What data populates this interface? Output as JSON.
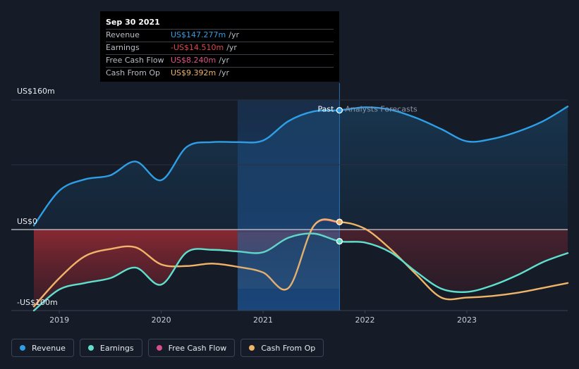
{
  "tooltip": {
    "date": "Sep 30 2021",
    "rows": [
      {
        "label": "Revenue",
        "value": "US$147.277m",
        "unit": "/yr",
        "color": "#2e9fe6"
      },
      {
        "label": "Earnings",
        "value": "-US$14.510m",
        "unit": "/yr",
        "color": "#e2454b"
      },
      {
        "label": "Free Cash Flow",
        "value": "US$8.240m",
        "unit": "/yr",
        "color": "#e0508a"
      },
      {
        "label": "Cash From Op",
        "value": "US$9.392m",
        "unit": "/yr",
        "color": "#f0b468"
      }
    ]
  },
  "labels": {
    "past": "Past",
    "forecast": "Analysts Forecasts"
  },
  "legend": [
    {
      "label": "Revenue",
      "color": "#2e9fe6"
    },
    {
      "label": "Earnings",
      "color": "#5fe0cf"
    },
    {
      "label": "Free Cash Flow",
      "color": "#d6508a"
    },
    {
      "label": "Cash From Op",
      "color": "#f0b468"
    }
  ],
  "chart_data": {
    "type": "line",
    "y_unit": "US$ m",
    "ylim": [
      -100,
      160
    ],
    "ytick_labels": [
      "US$160m",
      "US$0",
      "-US$100m"
    ],
    "yticks": [
      160,
      0,
      -100
    ],
    "xlim": [
      2018.75,
      2023.99
    ],
    "xticks": [
      2019,
      2020,
      2021,
      2022,
      2023
    ],
    "xtick_labels": [
      "2019",
      "2020",
      "2021",
      "2022",
      "2023"
    ],
    "past_end": 2021.75,
    "highlight_start": 2020.75,
    "series": [
      {
        "name": "Revenue",
        "color": "#2e9fe6",
        "x": [
          2018.75,
          2019.0,
          2019.25,
          2019.5,
          2019.75,
          2020.0,
          2020.25,
          2020.5,
          2020.75,
          2021.0,
          2021.25,
          2021.5,
          2021.75,
          2022.0,
          2022.25,
          2022.5,
          2022.75,
          2023.0,
          2023.25,
          2023.5,
          2023.75,
          2023.99
        ],
        "y": [
          5,
          48,
          62,
          67,
          84,
          61,
          102,
          108,
          108,
          110,
          134,
          146,
          147.3,
          151,
          148,
          138,
          124,
          109,
          112,
          121,
          134,
          152
        ]
      },
      {
        "name": "Earnings",
        "color": "#5fe0cf",
        "x": [
          2018.75,
          2019.0,
          2019.25,
          2019.5,
          2019.75,
          2020.0,
          2020.25,
          2020.5,
          2020.75,
          2021.0,
          2021.25,
          2021.5,
          2021.75,
          2022.0,
          2022.25,
          2022.5,
          2022.75,
          2023.0,
          2023.25,
          2023.5,
          2023.75,
          2023.99
        ],
        "y": [
          -100,
          -74,
          -66,
          -60,
          -47,
          -68,
          -28,
          -25,
          -27,
          -28,
          -10,
          -5,
          -14.5,
          -16,
          -28,
          -52,
          -73,
          -77,
          -69,
          -56,
          -40,
          -29
        ]
      },
      {
        "name": "Free Cash Flow",
        "color": "#d6508a",
        "x": [
          2018.75,
          2019.0,
          2019.25,
          2019.5,
          2019.75,
          2020.0,
          2020.25,
          2020.5,
          2020.75,
          2021.0,
          2021.25,
          2021.5,
          2021.75
        ],
        "y": [
          -95,
          -60,
          -33,
          -24,
          -22,
          -43,
          -45,
          -42,
          -46,
          -53,
          -72,
          5,
          8.24
        ]
      },
      {
        "name": "Cash From Op",
        "color": "#f0b468",
        "x": [
          2018.75,
          2019.0,
          2019.25,
          2019.5,
          2019.75,
          2020.0,
          2020.25,
          2020.5,
          2020.75,
          2021.0,
          2021.25,
          2021.5,
          2021.75,
          2022.0,
          2022.25,
          2022.5,
          2022.75,
          2023.0,
          2023.25,
          2023.5,
          2023.75,
          2023.99
        ],
        "y": [
          -95,
          -60,
          -33,
          -24,
          -22,
          -43,
          -45,
          -42,
          -46,
          -53,
          -72,
          5,
          9.392,
          1,
          -24,
          -55,
          -84,
          -84,
          -82,
          -78,
          -72,
          -66
        ]
      }
    ]
  }
}
